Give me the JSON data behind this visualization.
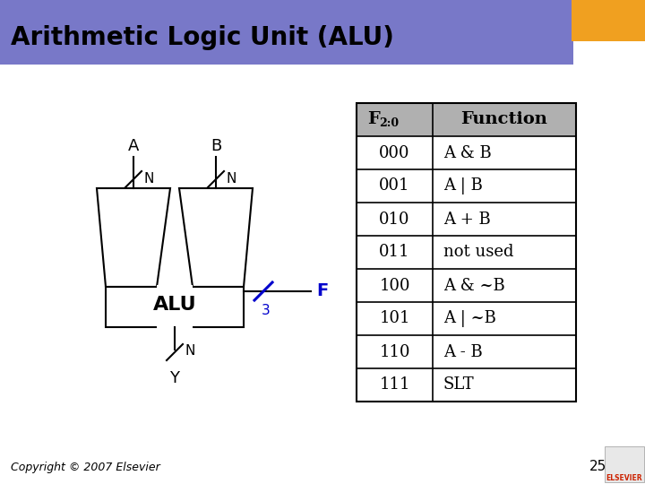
{
  "title": "Arithmetic Logic Unit (ALU)",
  "title_bg": "#7878c8",
  "title_orange_rect": "#f0a020",
  "slide_bg": "#ffffff",
  "table_headers": [
    "F",
    "2:0",
    "Function"
  ],
  "table_rows": [
    [
      "000",
      "A & B"
    ],
    [
      "001",
      "A | B"
    ],
    [
      "010",
      "A + B"
    ],
    [
      "011",
      "not used"
    ],
    [
      "100",
      "A & ~B"
    ],
    [
      "101",
      "A | ~B"
    ],
    [
      "110",
      "A - B"
    ],
    [
      "111",
      "SLT"
    ]
  ],
  "header_bg": "#b0b0b0",
  "copyright": "Copyright © 2007 Elsevier",
  "page_num": "25",
  "alu_label": "ALU",
  "bus_color": "#0000cc",
  "title_bar_width": 640,
  "title_bar_height": 72
}
